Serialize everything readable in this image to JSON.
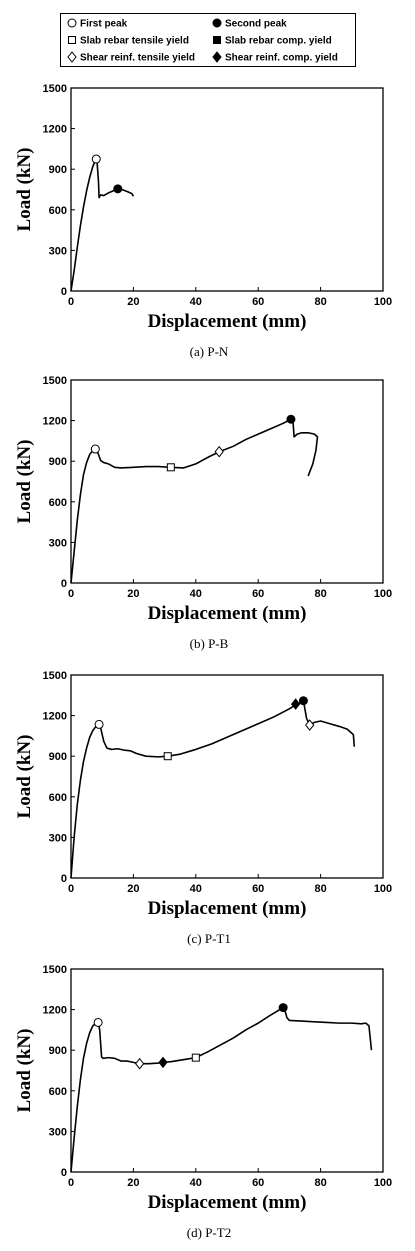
{
  "legend": {
    "items": [
      {
        "label": "First peak",
        "marker": "circle-open"
      },
      {
        "label": "Second peak",
        "marker": "circle-filled"
      },
      {
        "label": "Slab rebar tensile yield",
        "marker": "square-open"
      },
      {
        "label": "Slab rebar comp. yield",
        "marker": "square-filled"
      },
      {
        "label": "Shear reinf. tensile yield",
        "marker": "diamond-open"
      },
      {
        "label": "Shear reinf. comp. yield",
        "marker": "diamond-filled"
      }
    ]
  },
  "chart_data": [
    {
      "type": "line",
      "caption": "(a) P-N",
      "xlabel": "Displacement (mm)",
      "ylabel": "Load (kN)",
      "xlim": [
        0,
        100
      ],
      "ylim": [
        0,
        1500
      ],
      "xticks": [
        0,
        20,
        40,
        60,
        80,
        100
      ],
      "yticks": [
        0,
        300,
        600,
        900,
        1200,
        1500
      ],
      "grid": false,
      "series": [
        {
          "x": [
            0,
            1,
            2,
            3,
            4,
            5,
            6,
            7,
            7.8,
            8.1,
            8.4,
            8.8,
            9.0,
            9.5,
            10.5,
            12,
            13.5,
            15,
            16.5,
            18,
            19.5,
            20
          ],
          "y": [
            0,
            150,
            320,
            480,
            620,
            740,
            840,
            920,
            965,
            975,
            940,
            810,
            690,
            710,
            705,
            725,
            740,
            755,
            748,
            735,
            720,
            700
          ]
        }
      ],
      "markers": [
        {
          "type": "circle-open",
          "x": 8.1,
          "y": 975
        },
        {
          "type": "circle-filled",
          "x": 15.0,
          "y": 755
        }
      ]
    },
    {
      "type": "line",
      "caption": "(b) P-B",
      "xlabel": "Displacement (mm)",
      "ylabel": "Load (kN)",
      "xlim": [
        0,
        100
      ],
      "ylim": [
        0,
        1500
      ],
      "xticks": [
        0,
        20,
        40,
        60,
        80,
        100
      ],
      "yticks": [
        0,
        300,
        600,
        900,
        1200,
        1500
      ],
      "grid": false,
      "series": [
        {
          "x": [
            0,
            1,
            2,
            3,
            4,
            5,
            6,
            7,
            7.8,
            8.5,
            9.5,
            10.5,
            12,
            14,
            16,
            20,
            24,
            28,
            32,
            36,
            40,
            44,
            47.5,
            52,
            56,
            60,
            64,
            68,
            70.5,
            71.2,
            71.5,
            72.5,
            74,
            76,
            78,
            79,
            78.5,
            77.5,
            76
          ],
          "y": [
            0,
            230,
            460,
            650,
            800,
            890,
            950,
            980,
            990,
            970,
            905,
            890,
            880,
            855,
            850,
            855,
            860,
            860,
            855,
            850,
            880,
            930,
            970,
            1010,
            1060,
            1100,
            1140,
            1180,
            1210,
            1180,
            1080,
            1100,
            1110,
            1110,
            1100,
            1080,
            980,
            880,
            790
          ]
        }
      ],
      "markers": [
        {
          "type": "circle-open",
          "x": 7.8,
          "y": 990
        },
        {
          "type": "square-open",
          "x": 32,
          "y": 855
        },
        {
          "type": "diamond-open",
          "x": 47.5,
          "y": 970
        },
        {
          "type": "circle-filled",
          "x": 70.5,
          "y": 1210
        }
      ]
    },
    {
      "type": "line",
      "caption": "(c) P-T1",
      "xlabel": "Displacement (mm)",
      "ylabel": "Load (kN)",
      "xlim": [
        0,
        100
      ],
      "ylim": [
        0,
        1500
      ],
      "xticks": [
        0,
        20,
        40,
        60,
        80,
        100
      ],
      "yticks": [
        0,
        300,
        600,
        900,
        1200,
        1500
      ],
      "grid": false,
      "series": [
        {
          "x": [
            0,
            1,
            2,
            3,
            4,
            5,
            6,
            7,
            8,
            9,
            9.5,
            10.5,
            11.5,
            13,
            15,
            17,
            19,
            21,
            24,
            28,
            31,
            35,
            40,
            45,
            50,
            55,
            60,
            65,
            70,
            72,
            73.5,
            74.5,
            75.5,
            76.5,
            78,
            80,
            83,
            86,
            88.5,
            89.5,
            90.5,
            90.8
          ],
          "y": [
            0,
            300,
            540,
            720,
            860,
            960,
            1040,
            1090,
            1120,
            1135,
            1110,
            1010,
            960,
            950,
            955,
            945,
            940,
            920,
            900,
            895,
            900,
            915,
            950,
            990,
            1040,
            1090,
            1140,
            1190,
            1250,
            1280,
            1295,
            1310,
            1180,
            1130,
            1150,
            1160,
            1140,
            1120,
            1100,
            1080,
            1060,
            970
          ]
        }
      ],
      "markers": [
        {
          "type": "circle-open",
          "x": 9,
          "y": 1135
        },
        {
          "type": "square-open",
          "x": 31,
          "y": 900
        },
        {
          "type": "diamond-filled",
          "x": 72,
          "y": 1285
        },
        {
          "type": "circle-filled",
          "x": 74.5,
          "y": 1310
        },
        {
          "type": "diamond-open",
          "x": 76.5,
          "y": 1130
        }
      ]
    },
    {
      "type": "line",
      "caption": "(d) P-T2",
      "xlabel": "Displacement (mm)",
      "ylabel": "Load (kN)",
      "xlim": [
        0,
        100
      ],
      "ylim": [
        0,
        1500
      ],
      "xticks": [
        0,
        20,
        40,
        60,
        80,
        100
      ],
      "yticks": [
        0,
        300,
        600,
        900,
        1200,
        1500
      ],
      "grid": false,
      "series": [
        {
          "x": [
            0,
            1,
            2,
            3,
            4,
            5,
            6,
            7,
            8,
            8.7,
            9.2,
            9.8,
            10.3,
            12,
            14,
            16,
            18,
            20,
            22,
            25,
            28,
            29.5,
            32,
            36,
            40,
            44,
            48,
            52,
            56,
            60,
            64,
            68,
            68.5,
            69.2,
            70,
            74,
            78,
            82,
            86,
            90,
            93,
            94.5,
            95.5,
            96.3
          ],
          "y": [
            0,
            250,
            480,
            680,
            840,
            950,
            1030,
            1080,
            1100,
            1105,
            1050,
            850,
            840,
            845,
            840,
            820,
            820,
            810,
            800,
            800,
            805,
            810,
            815,
            830,
            845,
            890,
            940,
            990,
            1050,
            1100,
            1160,
            1215,
            1200,
            1140,
            1120,
            1115,
            1110,
            1105,
            1100,
            1100,
            1095,
            1100,
            1080,
            900
          ]
        }
      ],
      "markers": [
        {
          "type": "circle-open",
          "x": 8.7,
          "y": 1105
        },
        {
          "type": "diamond-open",
          "x": 22,
          "y": 800
        },
        {
          "type": "diamond-filled",
          "x": 29.5,
          "y": 810
        },
        {
          "type": "square-open",
          "x": 40,
          "y": 845
        },
        {
          "type": "circle-filled",
          "x": 68,
          "y": 1215
        }
      ]
    }
  ]
}
